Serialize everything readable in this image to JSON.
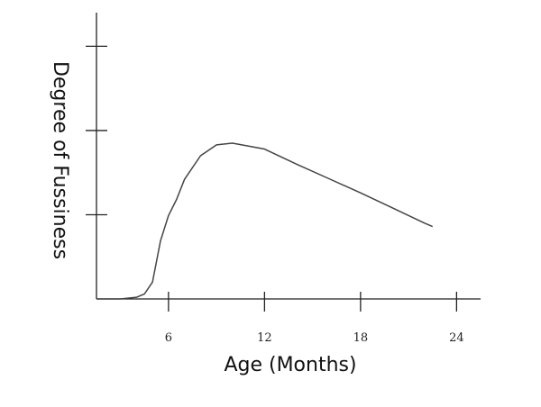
{
  "chart_data": {
    "type": "line",
    "x_label": "Age (Months)",
    "y_label": "Degree of Fussiness",
    "x": [
      1.5,
      3,
      4,
      4.5,
      5,
      5.5,
      6,
      6.5,
      7,
      8,
      9,
      10,
      12,
      14,
      16,
      18,
      20,
      22,
      22.5
    ],
    "series": [
      {
        "color": "#444444",
        "values": [
          0,
          0,
          0.02,
          0.06,
          0.2,
          0.69,
          0.99,
          1.18,
          1.42,
          1.7,
          1.83,
          1.85,
          1.78,
          1.6,
          1.43,
          1.26,
          1.08,
          0.9,
          0.86
        ]
      }
    ],
    "xlim": [
      1.5,
      25.5
    ],
    "xticks": [
      6,
      12,
      18,
      24
    ],
    "ylim": [
      0,
      3.4
    ],
    "yticks": [
      1,
      2,
      3
    ],
    "grid": false
  }
}
